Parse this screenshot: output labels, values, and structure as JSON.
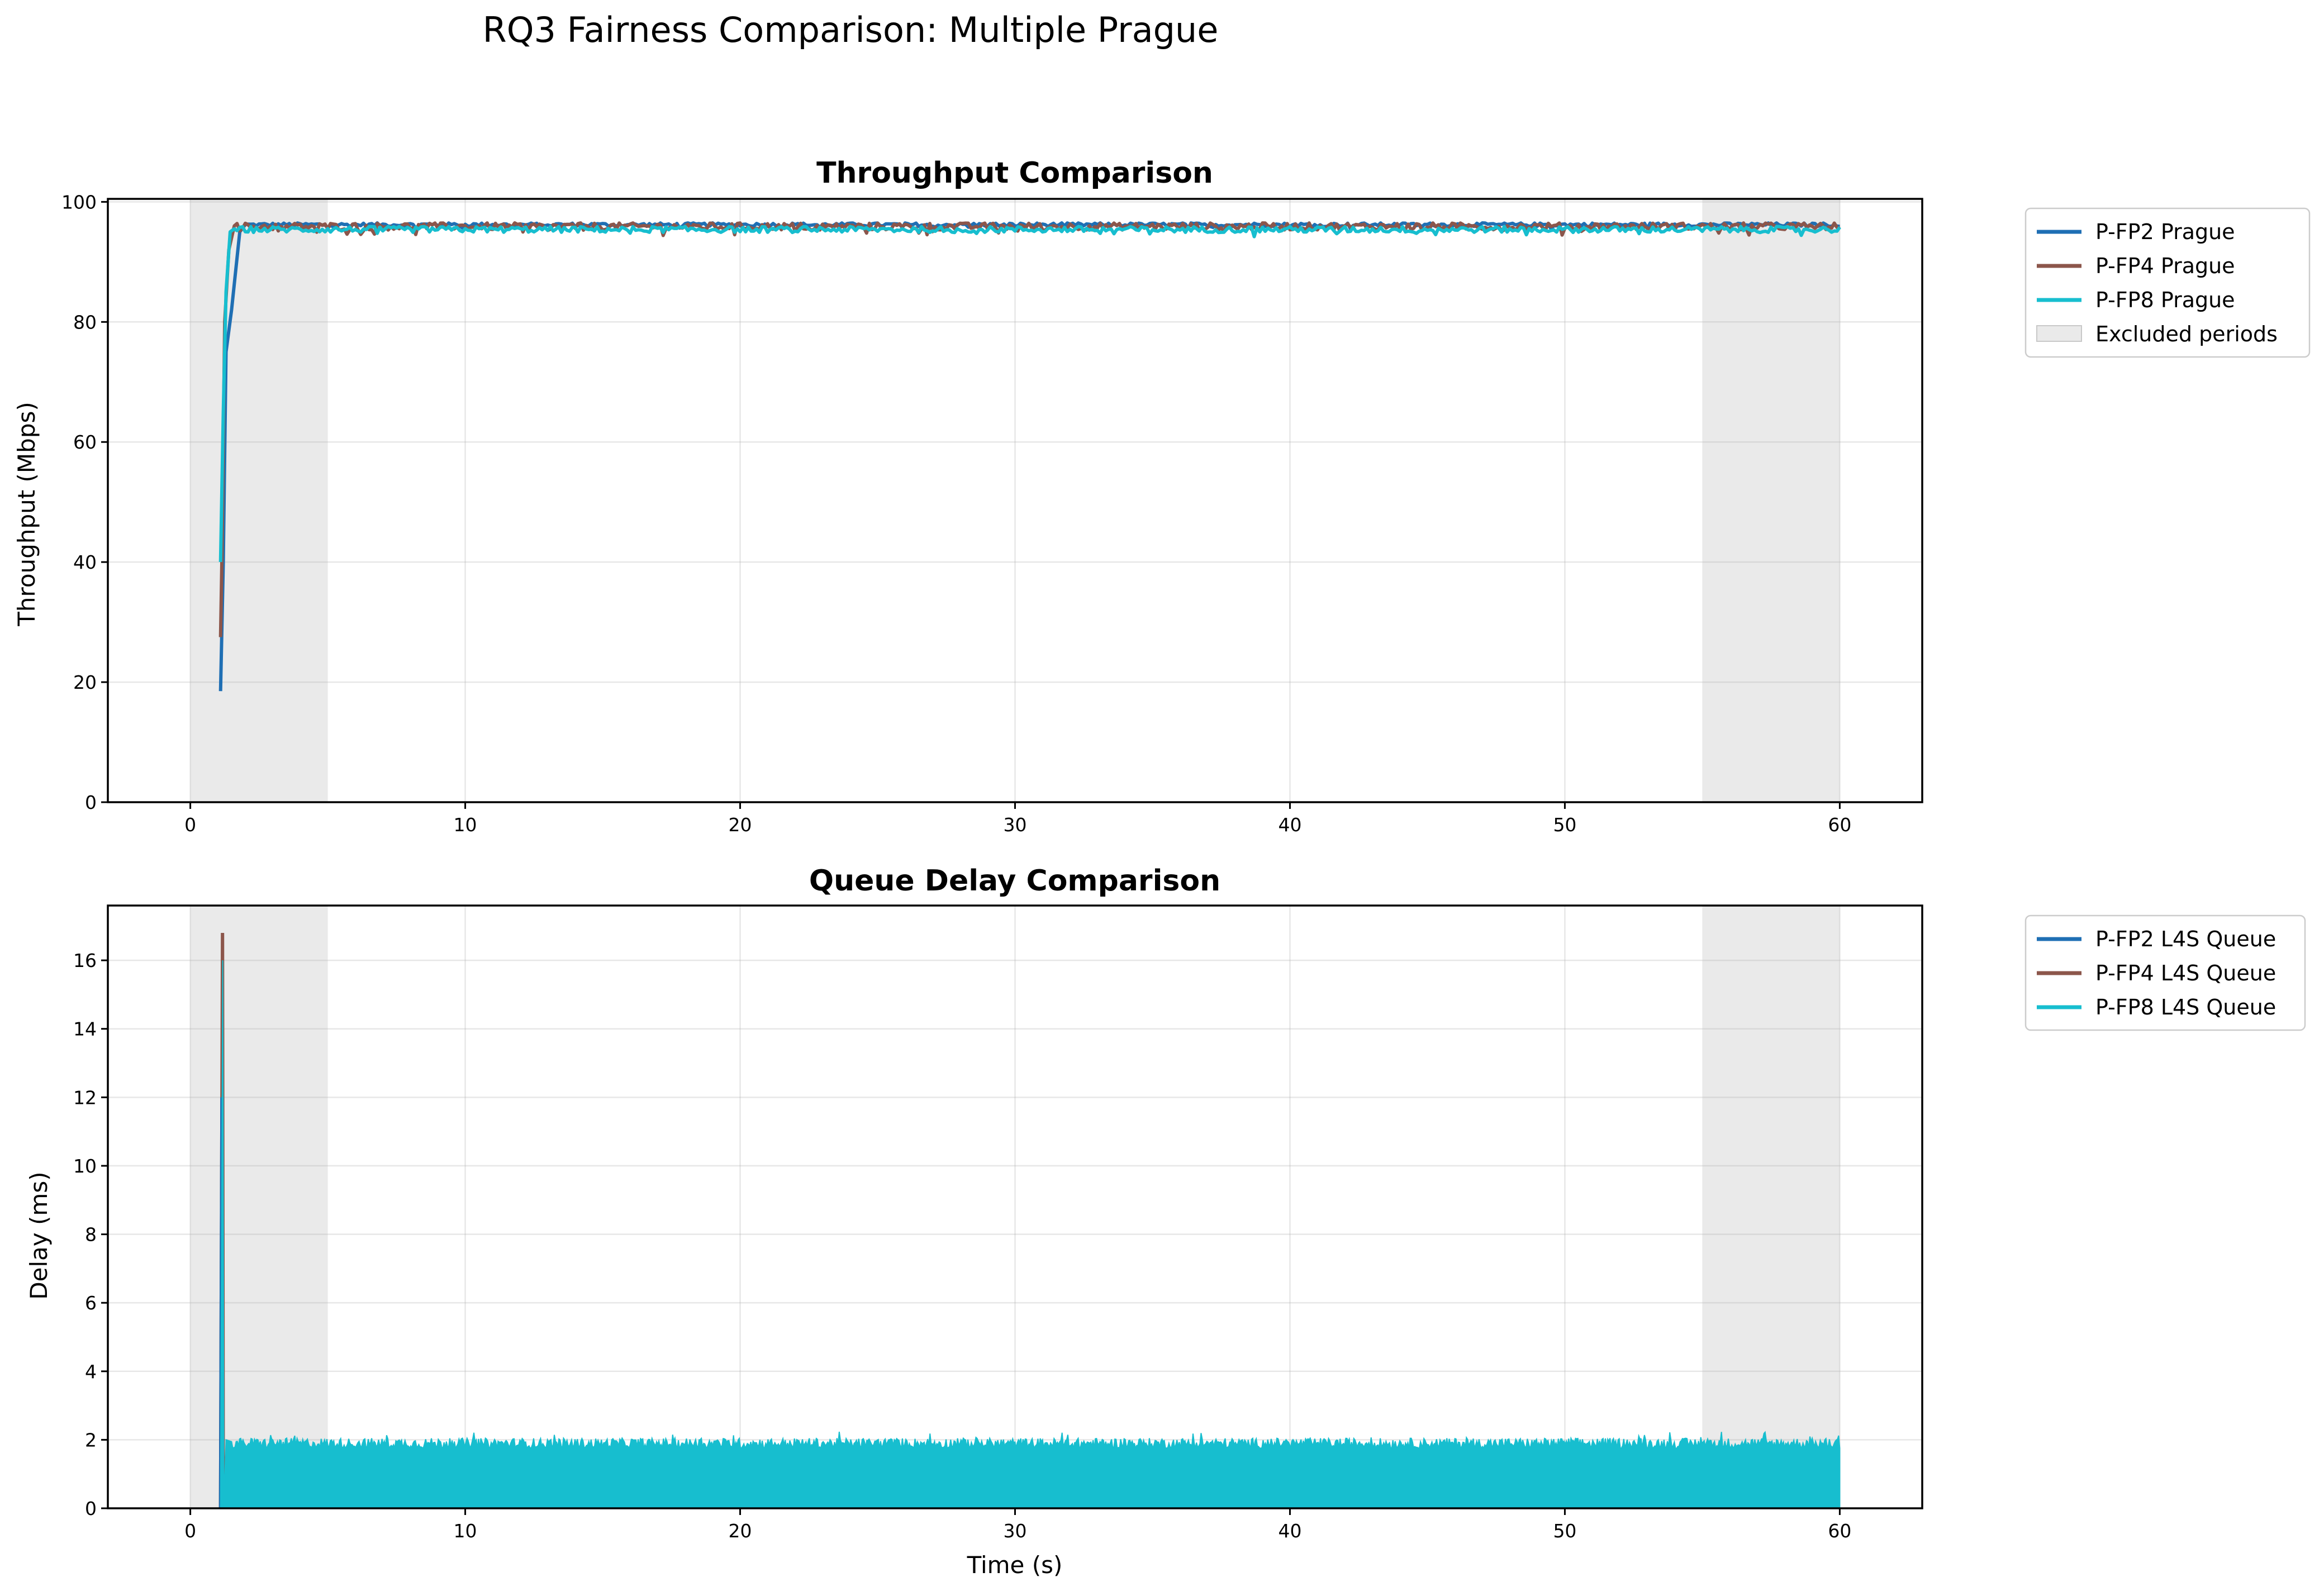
{
  "figure_title": "RQ3 Fairness Comparison: Multiple Prague",
  "colors": {
    "P-FP2": "#1f6fb4",
    "P-FP4": "#8c564b",
    "P-FP8": "#17becf",
    "excluded": "#d6d6d6"
  },
  "chart_data": [
    {
      "type": "line",
      "title": "Throughput Comparison",
      "xlabel": "",
      "ylabel": "Throughput (Mbps)",
      "xlim": [
        -3,
        63
      ],
      "ylim": [
        0,
        100.5
      ],
      "xticks": [
        0,
        10,
        20,
        30,
        40,
        50,
        60
      ],
      "yticks": [
        0,
        20,
        40,
        60,
        80,
        100
      ],
      "grid": true,
      "legend_position": "outside-top-right",
      "excluded_periods": [
        [
          0,
          5
        ],
        [
          55,
          60
        ]
      ],
      "excluded_label": "Excluded periods",
      "series": [
        {
          "name": "P-FP2 Prague",
          "color_key": "P-FP2",
          "x_start": 1.1,
          "x_end": 60,
          "x_step": 0.1,
          "startup": [
            [
              1.1,
              18.5
            ],
            [
              1.2,
              40
            ],
            [
              1.3,
              75
            ],
            [
              1.5,
              82
            ],
            [
              1.8,
              95
            ],
            [
              2.0,
              96.2
            ]
          ],
          "steady": 96.2,
          "jitter": 0.3
        },
        {
          "name": "P-FP4 Prague",
          "color_key": "P-FP4",
          "x_start": 1.1,
          "x_end": 60,
          "x_step": 0.1,
          "startup": [
            [
              1.1,
              27.5
            ],
            [
              1.15,
              41
            ],
            [
              1.25,
              80
            ],
            [
              1.4,
              92
            ],
            [
              1.6,
              96
            ]
          ],
          "steady": 95.9,
          "jitter": 0.6
        },
        {
          "name": "P-FP8 Prague",
          "color_key": "P-FP8",
          "x_start": 1.1,
          "x_end": 60,
          "x_step": 0.1,
          "startup": [
            [
              1.1,
              40
            ],
            [
              1.2,
              65
            ],
            [
              1.3,
              85
            ],
            [
              1.45,
              95
            ],
            [
              1.6,
              95.5
            ]
          ],
          "steady": 95.4,
          "jitter": 0.5
        }
      ]
    },
    {
      "type": "area",
      "title": "Queue Delay Comparison",
      "xlabel": "Time (s)",
      "ylabel": "Delay (ms)",
      "xlim": [
        -3,
        63
      ],
      "ylim": [
        0,
        17.6
      ],
      "xticks": [
        0,
        10,
        20,
        30,
        40,
        50,
        60
      ],
      "yticks": [
        0,
        2,
        4,
        6,
        8,
        10,
        12,
        14,
        16
      ],
      "grid": true,
      "legend_position": "outside-top-right",
      "excluded_periods": [
        [
          0,
          5
        ],
        [
          55,
          60
        ]
      ],
      "series": [
        {
          "name": "P-FP2 L4S Queue",
          "color_key": "P-FP2",
          "spike": [
            [
              1.1,
              0
            ],
            [
              1.15,
              12
            ],
            [
              1.18,
              0
            ]
          ]
        },
        {
          "name": "P-FP4 L4S Queue",
          "color_key": "P-FP4",
          "spike": [
            [
              1.1,
              0
            ],
            [
              1.17,
              16.8
            ],
            [
              1.2,
              0
            ]
          ]
        },
        {
          "name": "P-FP8 L4S Queue",
          "color_key": "P-FP8",
          "spike": [
            [
              1.1,
              0
            ],
            [
              1.18,
              16.0
            ],
            [
              1.22,
              0
            ]
          ],
          "x_start": 1.1,
          "x_end": 60,
          "envelope_mean": 1.9,
          "envelope_jitter": 0.15
        }
      ]
    }
  ]
}
